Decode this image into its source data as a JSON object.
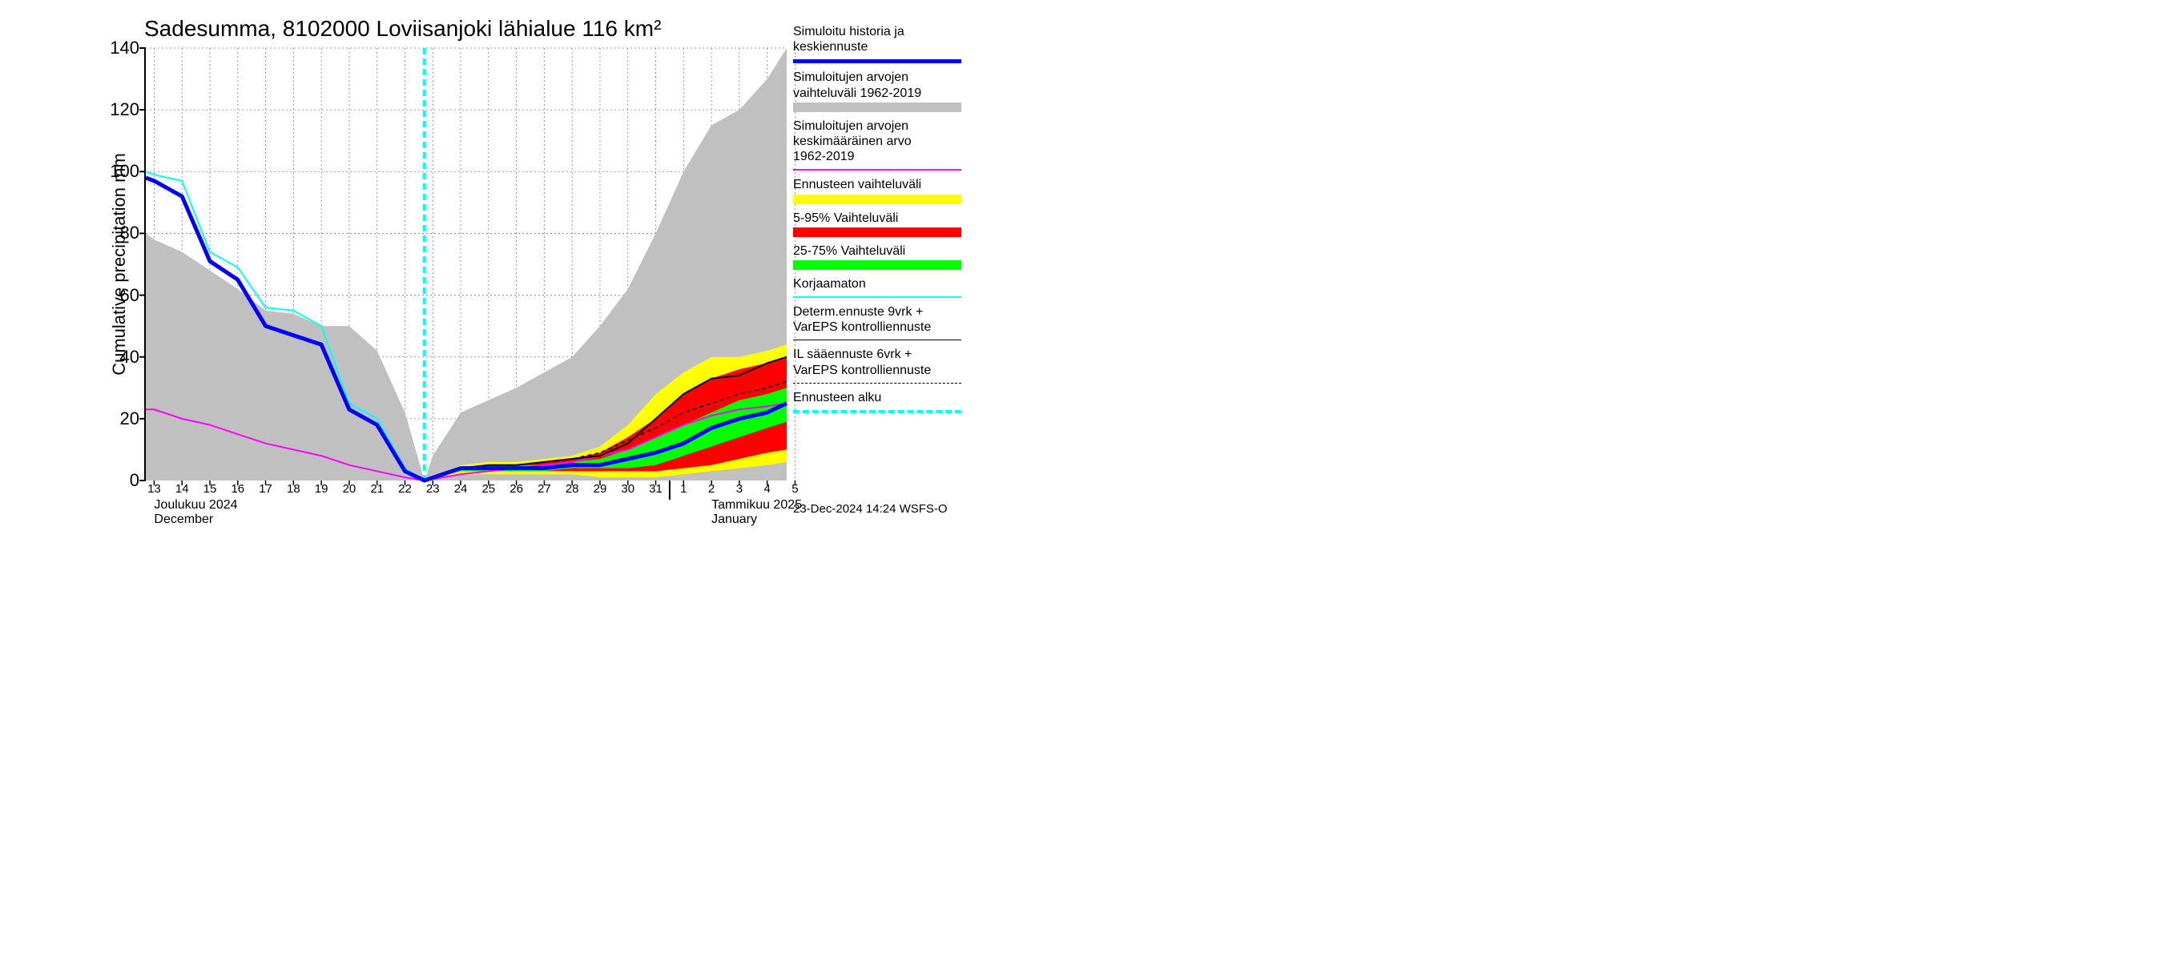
{
  "chart": {
    "title": "Sadesumma, 8102000 Loviisanjoki lähialue 116 km²",
    "ylabel": "Cumulative precipitation   mm",
    "x_days": [
      13,
      14,
      15,
      16,
      17,
      18,
      19,
      20,
      21,
      22,
      23,
      24,
      25,
      26,
      27,
      28,
      29,
      30,
      31,
      1,
      2,
      3,
      4,
      5
    ],
    "xlim": [
      12.7,
      5.7
    ],
    "ylim": [
      0,
      140
    ],
    "ytick_step": 20,
    "grid_color": "#808080",
    "grid_dash": "2,3",
    "background_color": "#ffffff",
    "month1": {
      "fi": "Joulukuu  2024",
      "en": "December",
      "x_day": 13
    },
    "month2": {
      "fi": "Tammikuu  2025",
      "en": "January",
      "x_day": 2
    },
    "month_divider_day": 1,
    "forecast_start_day": 22.7,
    "forecast_start_color": "#00ffff",
    "forecast_start_dash": "8,5",
    "forecast_start_width": 4,
    "series": {
      "hist_range": {
        "kind": "area",
        "color": "#c0c0c0",
        "x": [
          12.7,
          13,
          14,
          15,
          16,
          17,
          18,
          19,
          20,
          21,
          22,
          22.7,
          23,
          24,
          25,
          26,
          27,
          28,
          29,
          30,
          31,
          32,
          33,
          34,
          35,
          35.7
        ],
        "upper": [
          80,
          78,
          74,
          68,
          62,
          55,
          54,
          50,
          50,
          42,
          22,
          0,
          8,
          22,
          26,
          30,
          35,
          40,
          50,
          62,
          80,
          100,
          115,
          120,
          130,
          140
        ],
        "lower": [
          0,
          0,
          0,
          0,
          0,
          0,
          0,
          0,
          0,
          0,
          0,
          0,
          0,
          0,
          0,
          0,
          0,
          0,
          0,
          0,
          0,
          0,
          0,
          0,
          0,
          0
        ]
      },
      "yellow": {
        "kind": "area",
        "color": "#ffff00",
        "x": [
          22.7,
          24,
          25,
          26,
          27,
          28,
          29,
          30,
          31,
          32,
          33,
          34,
          35,
          35.7
        ],
        "upper": [
          0,
          5,
          6,
          6,
          7,
          8,
          11,
          18,
          28,
          35,
          40,
          40,
          42,
          44
        ],
        "lower": [
          0,
          2,
          2,
          2,
          2,
          2,
          1,
          1,
          1,
          2,
          3,
          4,
          5,
          6
        ]
      },
      "red": {
        "kind": "area",
        "color": "#ff0000",
        "x": [
          22.7,
          24,
          25,
          26,
          27,
          28,
          29,
          30,
          31,
          32,
          33,
          34,
          35,
          35.7
        ],
        "upper": [
          0,
          4,
          5,
          5,
          6,
          7,
          9,
          14,
          20,
          28,
          33,
          36,
          38,
          40
        ],
        "lower": [
          0,
          3,
          3,
          3,
          3,
          3,
          3,
          3,
          3,
          4,
          5,
          7,
          9,
          10
        ]
      },
      "green": {
        "kind": "area",
        "color": "#00ff00",
        "x": [
          22.7,
          24,
          25,
          26,
          27,
          28,
          29,
          30,
          31,
          32,
          33,
          34,
          35,
          35.7
        ],
        "upper": [
          0,
          4,
          5,
          5,
          5,
          6,
          7,
          10,
          14,
          18,
          22,
          26,
          28,
          30
        ],
        "lower": [
          0,
          3,
          3,
          3,
          3,
          4,
          4,
          4,
          5,
          8,
          11,
          14,
          17,
          19
        ]
      },
      "blue_main": {
        "kind": "line",
        "color": "#0000ff",
        "width": 5,
        "x": [
          12.7,
          13,
          14,
          15,
          16,
          17,
          18,
          19,
          20,
          21,
          22,
          22.7,
          24,
          25,
          26,
          27,
          28,
          29,
          30,
          31,
          32,
          33,
          34,
          35,
          35.7
        ],
        "y": [
          98,
          97,
          92,
          71,
          65,
          50,
          47,
          44,
          23,
          18,
          3,
          0,
          4,
          4,
          4,
          4,
          5,
          5,
          7,
          9,
          12,
          17,
          20,
          22,
          25
        ]
      },
      "cyan_line": {
        "kind": "line",
        "color": "#00ffff",
        "width": 2,
        "x": [
          12.7,
          13,
          14,
          15,
          16,
          17,
          18,
          19,
          20,
          21,
          22,
          22.7
        ],
        "y": [
          100,
          99,
          97,
          74,
          69,
          56,
          55,
          50,
          25,
          20,
          4,
          0
        ]
      },
      "magenta": {
        "kind": "line",
        "color": "#ff00ff",
        "width": 2,
        "x": [
          12.7,
          13,
          14,
          15,
          16,
          17,
          18,
          19,
          20,
          21,
          22,
          22.7,
          24,
          25,
          26,
          27,
          28,
          29,
          30,
          31,
          32,
          33,
          34,
          35,
          35.7
        ],
        "y": [
          23,
          23,
          20,
          18,
          15,
          12,
          10,
          8,
          5,
          3,
          1,
          0,
          2,
          3,
          4,
          5,
          6,
          8,
          10,
          14,
          18,
          21,
          23,
          24,
          25
        ]
      },
      "black_solid": {
        "kind": "line",
        "color": "#000000",
        "width": 2,
        "x": [
          22.7,
          24,
          25,
          26,
          27,
          28,
          29,
          30,
          31,
          32,
          33,
          34,
          35,
          35.7
        ],
        "y": [
          0,
          4,
          5,
          5,
          6,
          7,
          8,
          12,
          20,
          28,
          33,
          34,
          38,
          40
        ]
      },
      "black_dash": {
        "kind": "line",
        "color": "#000000",
        "width": 1.5,
        "dash": "5,4",
        "x": [
          22.7,
          24,
          25,
          26,
          27,
          28,
          29,
          30,
          31,
          32,
          33,
          34,
          35,
          35.7
        ],
        "y": [
          0,
          4,
          5,
          5,
          6,
          7,
          9,
          13,
          17,
          22,
          25,
          28,
          30,
          32
        ]
      }
    },
    "footer": "23-Dec-2024 14:24 WSFS-O"
  },
  "legend": [
    {
      "text": "Simuloitu historia ja keskiennuste",
      "type": "line",
      "color": "#0000ff",
      "width": 5
    },
    {
      "text": "Simuloitujen arvojen vaihteluväli 1962-2019",
      "type": "swatch",
      "color": "#c0c0c0"
    },
    {
      "text": "Simuloitujen arvojen keskimääräinen arvo\n  1962-2019",
      "type": "line",
      "color": "#ff00ff",
      "width": 2
    },
    {
      "text": "Ennusteen vaihteluväli",
      "type": "swatch",
      "color": "#ffff00"
    },
    {
      "text": "5-95% Vaihteluväli",
      "type": "swatch",
      "color": "#ff0000"
    },
    {
      "text": "25-75% Vaihteluväli",
      "type": "swatch",
      "color": "#00ff00"
    },
    {
      "text": "Korjaamaton",
      "type": "line",
      "color": "#00ffff",
      "width": 2
    },
    {
      "text": "Determ.ennuste 9vrk + VarEPS kontrolliennuste",
      "type": "line",
      "color": "#000000",
      "width": 1.5
    },
    {
      "text": "IL sääennuste 6vrk  +\n VarEPS kontrolliennuste",
      "type": "line",
      "color": "#000000",
      "width": 1.5,
      "dash": "5,4"
    },
    {
      "text": "Ennusteen alku",
      "type": "line",
      "color": "#00ffff",
      "width": 4,
      "dash": "8,5"
    }
  ]
}
